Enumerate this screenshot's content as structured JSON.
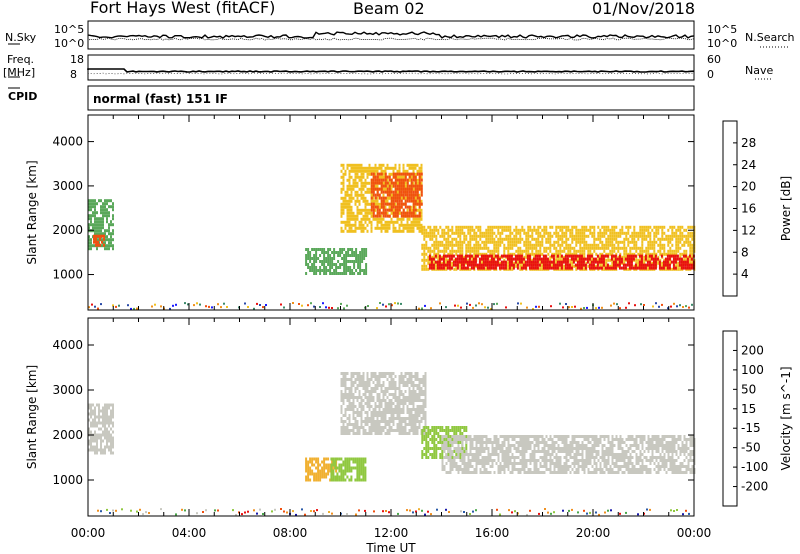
{
  "header": {
    "radar": "Fort Hays West (fitACF)",
    "beam": "Beam 02",
    "date": "01/Nov/2018"
  },
  "top_panels": {
    "nsky_label": "N.Sky",
    "nsky_tick_hi": "10^5",
    "nsky_tick_lo": "10^0",
    "nsearch_label": "N.Search",
    "nsearch_tick_hi": "10^5",
    "nsearch_tick_lo": "10^0",
    "freq_label_1": "Freq.",
    "freq_label_2": "[MHz]",
    "freq_tick_hi": "18",
    "freq_tick_lo": "8",
    "nave_label": "Nave",
    "nave_tick_hi": "60",
    "nave_tick_lo": "0",
    "cpid_label": "CPID",
    "cpid_text": "normal (fast) 151 IF"
  },
  "colors": {
    "power": [
      "#1a1aff",
      "#2a4aa8",
      "#3c8a6a",
      "#5aa85a",
      "#f0c020",
      "#f0901a",
      "#f05010",
      "#e81010"
    ],
    "velocity": [
      "#e81010",
      "#f05010",
      "#f09020",
      "#f0b030",
      "#c8c8c0",
      "#90c840",
      "#4aa84a",
      "#2a5aa8",
      "#1a1aaa"
    ]
  },
  "chart_data": [
    {
      "type": "heatmap",
      "panel": "power",
      "ylabel": "Slant Range [km]",
      "xlabel": "Time UT",
      "x_ticks": [
        "00:00",
        "04:00",
        "08:00",
        "12:00",
        "16:00",
        "20:00",
        "00:00"
      ],
      "y_ticks": [
        1000,
        2000,
        3000,
        4000
      ],
      "ylim": [
        200,
        4600
      ],
      "xlim_hours": [
        0,
        24
      ],
      "colorbar_label": "Power [dB]",
      "colorbar_ticks": [
        "4",
        "8",
        "12",
        "16",
        "20",
        "24",
        "28"
      ],
      "colorbar_range": [
        0,
        30
      ],
      "regions": [
        {
          "x": [
            0.0,
            1.0
          ],
          "y": [
            1600,
            2700
          ],
          "value": 14
        },
        {
          "x": [
            0.2,
            0.6
          ],
          "y": [
            1650,
            1900
          ],
          "value": 26
        },
        {
          "x": [
            8.6,
            11.0
          ],
          "y": [
            1000,
            1600
          ],
          "value": 14
        },
        {
          "x": [
            10.0,
            13.2
          ],
          "y": [
            2000,
            3500
          ],
          "value": 16
        },
        {
          "x": [
            11.2,
            13.2
          ],
          "y": [
            2300,
            3300
          ],
          "value": 24
        },
        {
          "x": [
            13.2,
            24.0
          ],
          "y": [
            1100,
            2100
          ],
          "value": 18
        },
        {
          "x": [
            13.5,
            24.0
          ],
          "y": [
            1150,
            1450
          ],
          "value": 28
        }
      ]
    },
    {
      "type": "heatmap",
      "panel": "velocity",
      "ylabel": "Slant Range [km]",
      "xlabel": "Time UT",
      "x_ticks": [
        "00:00",
        "04:00",
        "08:00",
        "12:00",
        "16:00",
        "20:00",
        "00:00"
      ],
      "y_ticks": [
        1000,
        2000,
        3000,
        4000
      ],
      "ylim": [
        200,
        4600
      ],
      "xlim_hours": [
        0,
        24
      ],
      "colorbar_label": "Velocity [m s^-1]",
      "colorbar_ticks": [
        "200",
        "100",
        "50",
        "15",
        "-15",
        "-50",
        "-100",
        "-200"
      ],
      "regions": [
        {
          "x": [
            0.0,
            1.0
          ],
          "y": [
            1600,
            2700
          ],
          "value": 0
        },
        {
          "x": [
            8.6,
            9.8
          ],
          "y": [
            1000,
            1500
          ],
          "value": -40
        },
        {
          "x": [
            9.6,
            11.0
          ],
          "y": [
            1000,
            1500
          ],
          "value": 40
        },
        {
          "x": [
            10.0,
            13.4
          ],
          "y": [
            2000,
            3400
          ],
          "value": 0
        },
        {
          "x": [
            13.2,
            15.0
          ],
          "y": [
            1500,
            2200
          ],
          "value": 40
        },
        {
          "x": [
            14.0,
            24.0
          ],
          "y": [
            1150,
            2000
          ],
          "value": 0
        }
      ]
    }
  ]
}
